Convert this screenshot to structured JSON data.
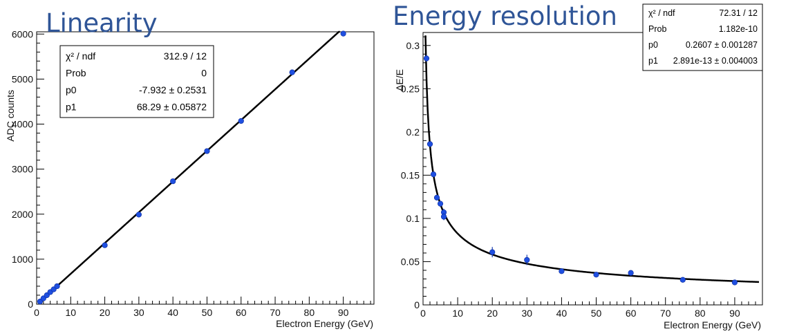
{
  "slide": {
    "left_title": "Linearity",
    "right_title": "Energy resolution"
  },
  "chart_data": [
    {
      "type": "scatter",
      "title": "",
      "xlabel": "Electron Energy (GeV)",
      "ylabel": "ADC counts",
      "xlim": [
        0,
        99
      ],
      "ylim": [
        0,
        6050
      ],
      "x_ticks": [
        0,
        10,
        20,
        30,
        40,
        50,
        60,
        70,
        80,
        90
      ],
      "y_ticks": [
        0,
        1000,
        2000,
        3000,
        4000,
        5000,
        6000
      ],
      "y_tick_labels": [
        "0",
        "1000",
        "2000",
        "3000",
        "4000",
        "5000",
        "6000"
      ],
      "grid": false,
      "point_color": "#1f4fe0",
      "fit": {
        "function": "p0 + p1*x",
        "p0": -7.932,
        "p1": 68.29,
        "x_range": [
          1,
          89
        ]
      },
      "points": [
        {
          "x": 1,
          "y": 60
        },
        {
          "x": 2,
          "y": 130
        },
        {
          "x": 3,
          "y": 200
        },
        {
          "x": 4,
          "y": 270
        },
        {
          "x": 5,
          "y": 330
        },
        {
          "x": 6,
          "y": 400
        },
        {
          "x": 20,
          "y": 1310
        },
        {
          "x": 30,
          "y": 1990
        },
        {
          "x": 40,
          "y": 2730
        },
        {
          "x": 50,
          "y": 3400
        },
        {
          "x": 60,
          "y": 4070
        },
        {
          "x": 75,
          "y": 5150
        },
        {
          "x": 90,
          "y": 6010
        }
      ],
      "stats": [
        {
          "label": "χ² / ndf",
          "value": "312.9 / 12"
        },
        {
          "label": "Prob",
          "value": "0"
        },
        {
          "label": "p0",
          "value": "-7.932 ± 0.2531"
        },
        {
          "label": "p1",
          "value": "68.29 ± 0.05872"
        }
      ],
      "stats_placement": "top-left"
    },
    {
      "type": "scatter",
      "title": "",
      "xlabel": "Electron Energy (GeV)",
      "ylabel": "ΔE/E",
      "xlim": [
        0,
        98
      ],
      "ylim": [
        0,
        0.315
      ],
      "x_ticks": [
        0,
        10,
        20,
        30,
        40,
        50,
        60,
        70,
        80,
        90
      ],
      "y_ticks": [
        0,
        0.05,
        0.1,
        0.15,
        0.2,
        0.25,
        0.3
      ],
      "y_tick_labels": [
        "0",
        "0.05",
        "0.1",
        "0.15",
        "0.2",
        "0.25",
        "0.3"
      ],
      "grid": false,
      "point_color": "#1f4fe0",
      "fit": {
        "function": "p0/sqrt(x) + p1",
        "p0": 0.2607,
        "p1": 2.891e-13,
        "x_range": [
          0.7,
          97
        ]
      },
      "points": [
        {
          "x": 1,
          "y": 0.285,
          "err": 0.004
        },
        {
          "x": 2,
          "y": 0.186,
          "err": 0.003
        },
        {
          "x": 3,
          "y": 0.151,
          "err": 0.003
        },
        {
          "x": 4,
          "y": 0.124,
          "err": 0.003
        },
        {
          "x": 5,
          "y": 0.117,
          "err": 0.003
        },
        {
          "x": 6,
          "y": 0.107,
          "err": 0.004
        },
        {
          "x": 6,
          "y": 0.102,
          "err": 0.004
        },
        {
          "x": 20,
          "y": 0.061,
          "err": 0.006
        },
        {
          "x": 30,
          "y": 0.052,
          "err": 0.006
        },
        {
          "x": 40,
          "y": 0.039,
          "err": 0.002
        },
        {
          "x": 50,
          "y": 0.035,
          "err": 0.002
        },
        {
          "x": 60,
          "y": 0.037,
          "err": 0.003
        },
        {
          "x": 75,
          "y": 0.029,
          "err": 0.002
        },
        {
          "x": 90,
          "y": 0.026,
          "err": 0.002
        }
      ],
      "stats": [
        {
          "label": "χ² / ndf",
          "value": "72.31 / 12"
        },
        {
          "label": "Prob",
          "value": "1.182e-10"
        },
        {
          "label": "p0",
          "value": "0.2607 ± 0.001287"
        },
        {
          "label": "p1",
          "value": "2.891e-13 ± 0.004003"
        }
      ],
      "stats_placement": "top-right"
    }
  ]
}
